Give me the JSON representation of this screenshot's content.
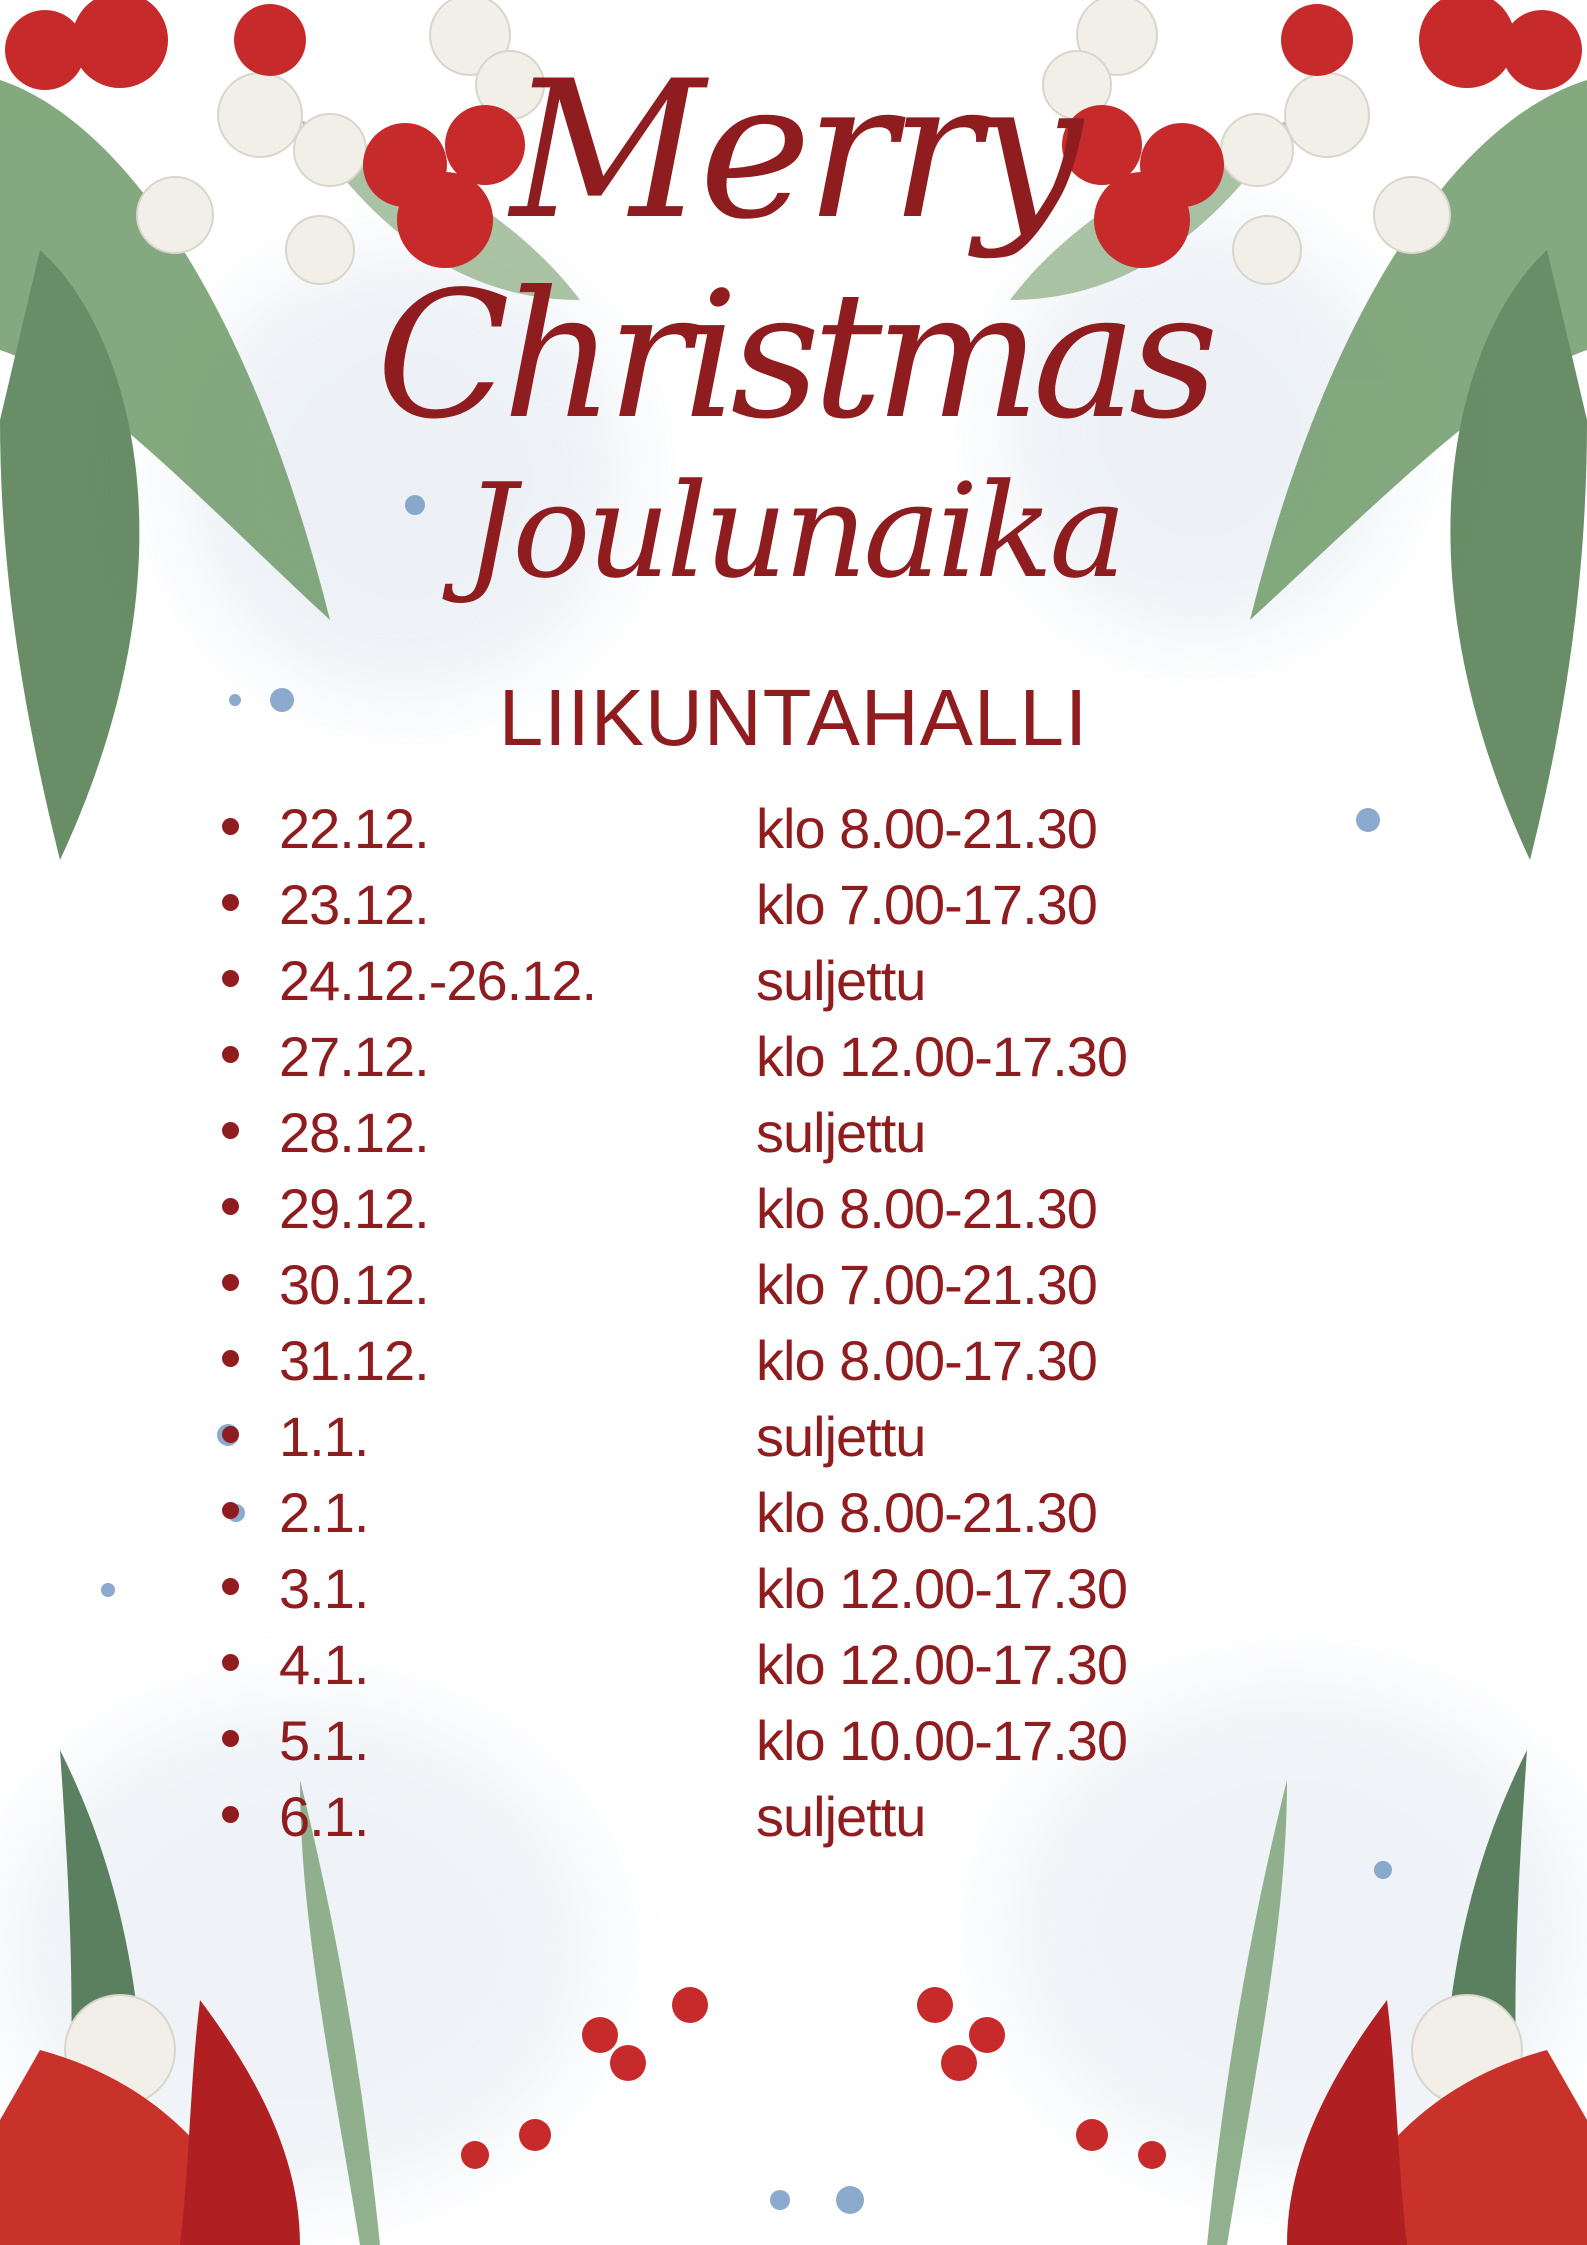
{
  "title": {
    "line1": "Merry",
    "line2": "Christmas",
    "line3": "Joulunaika"
  },
  "venue": "LIIKUNTAHALLI",
  "colors": {
    "text": "#8f1c1f",
    "berry": "#c62a2a",
    "leaf": "#5f8a5a",
    "wash": "#dfe7ef"
  },
  "schedule": [
    {
      "date": "22.12.",
      "hours": "klo 8.00-21.30"
    },
    {
      "date": "23.12.",
      "hours": "klo 7.00-17.30"
    },
    {
      "date": "24.12.-26.12.",
      "hours": "suljettu"
    },
    {
      "date": "27.12.",
      "hours": "klo 12.00-17.30"
    },
    {
      "date": "28.12.",
      "hours": "suljettu"
    },
    {
      "date": "29.12.",
      "hours": "klo 8.00-21.30"
    },
    {
      "date": "30.12.",
      "hours": "klo 7.00-21.30"
    },
    {
      "date": "31.12.",
      "hours": "klo 8.00-17.30"
    },
    {
      "date": "1.1.",
      "hours": "suljettu"
    },
    {
      "date": "2.1.",
      "hours": "klo 8.00-21.30"
    },
    {
      "date": "3.1.",
      "hours": "klo 12.00-17.30"
    },
    {
      "date": "4.1.",
      "hours": "klo 12.00-17.30"
    },
    {
      "date": "5.1.",
      "hours": "klo 10.00-17.30"
    },
    {
      "date": "6.1.",
      "hours": "suljettu"
    }
  ]
}
